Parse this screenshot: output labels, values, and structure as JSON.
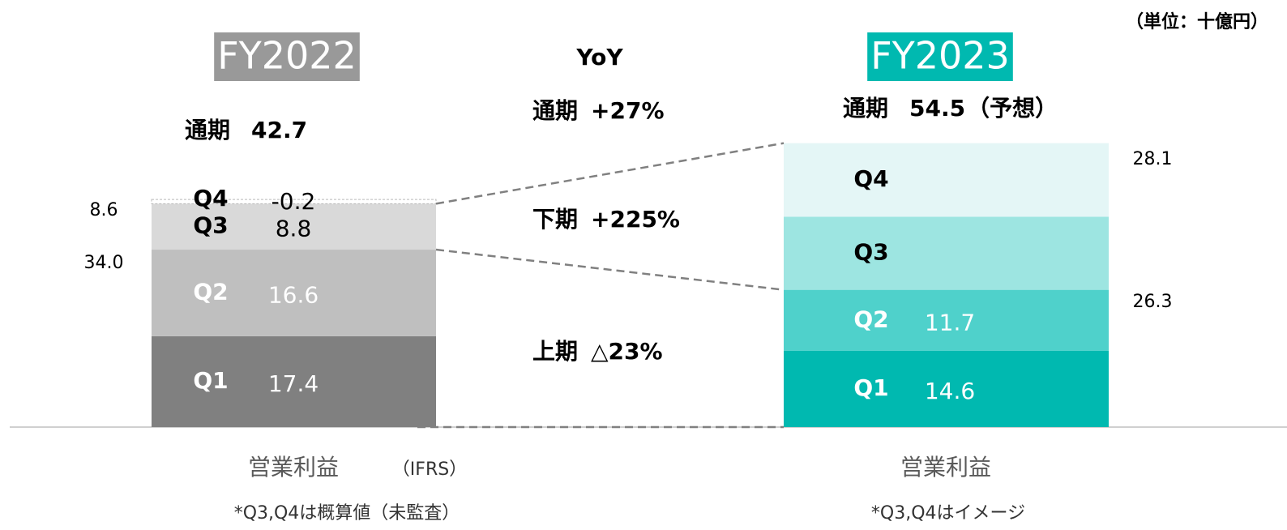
{
  "unit": "（単位：十億円）",
  "yoy": {
    "title": "YoY",
    "items": [
      {
        "label": "通期",
        "value": "+27%"
      },
      {
        "label": "下期",
        "value": "+225%"
      },
      {
        "label": "上期",
        "value": "△23%"
      }
    ]
  },
  "chart_data": [
    {
      "type": "stacked_bar",
      "title": "FY2022",
      "total_label": "通期",
      "total": 42.7,
      "categories": [
        "Q1",
        "Q2",
        "Q3",
        "Q4"
      ],
      "values": [
        17.4,
        16.6,
        8.8,
        -0.2
      ],
      "colors": [
        "#808080",
        "#bfbfbf",
        "#d9d9d9",
        "#ffffff"
      ],
      "text_colors": [
        "#ffffff",
        "#ffffff",
        "#000000",
        "#000000"
      ],
      "half_totals": [
        34.0,
        8.6
      ],
      "half_total_labels": [
        "34.0",
        "8.6"
      ],
      "xlabel": "営業利益",
      "xlabel_note": "（IFRS）",
      "footnote": "*Q3,Q4は概算値（未監査）",
      "title_color": "#999999"
    },
    {
      "type": "stacked_bar",
      "title": "FY2023",
      "total_label": "通期",
      "total": 54.5,
      "total_note": "（予想）",
      "categories": [
        "Q1",
        "Q2",
        "Q3",
        "Q4"
      ],
      "values": [
        14.6,
        11.7,
        14.0,
        14.1
      ],
      "value_labels": [
        "14.6",
        "11.7",
        null,
        null
      ],
      "colors": [
        "#00b9b0",
        "#4fd1cb",
        "#9de5e1",
        "#e4f6f6"
      ],
      "text_colors": [
        "#ffffff",
        "#ffffff",
        "#000000",
        "#000000"
      ],
      "half_totals": [
        26.3,
        28.1
      ],
      "xlabel": "営業利益",
      "footnote": "*Q3,Q4はイメージ",
      "title_color": "#00b9b0"
    }
  ]
}
